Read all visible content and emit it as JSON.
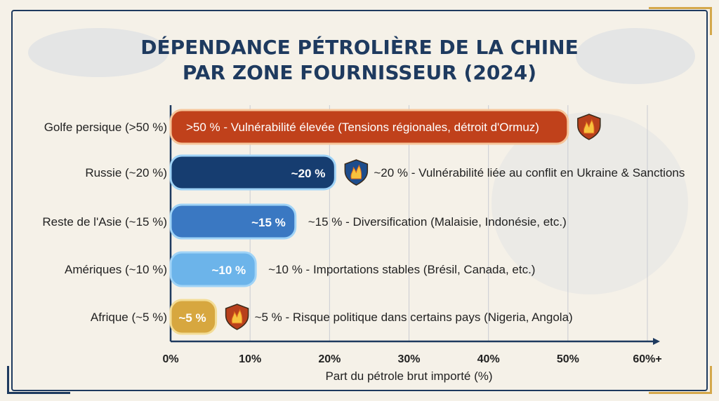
{
  "chart_data": {
    "type": "bar",
    "orientation": "horizontal",
    "title": "DÉPENDANCE PÉTROLIÈRE DE LA CHINE PAR ZONE FOURNISSEUR (2024)",
    "title_lines": [
      "DÉPENDANCE PÉTROLIÈRE DE LA CHINE",
      "PAR ZONE FOURNISSEUR (2024)"
    ],
    "xlabel": "Part du pétrole brut importé (%)",
    "ylabel": "",
    "xlim": [
      0,
      60
    ],
    "xticks": [
      "0%",
      "10%",
      "20%",
      "30%",
      "40%",
      "50%",
      "60%+"
    ],
    "grid": true,
    "categories": [
      "Golfe persique (>50 %)",
      "Russie (~20 %)",
      "Reste de l'Asie (~15 %)",
      "Amériques (~10 %)",
      "Afrique (~5 %)"
    ],
    "values": [
      50,
      20,
      15,
      10,
      5
    ],
    "bar_labels": [
      ">50 % - Vulnérabilité élevée (Tensions régionales, détroit d'Ormuz)",
      "~20 %",
      "~15 %",
      "~10 %",
      "~5 %"
    ],
    "annotations": [
      "",
      "~20 % - Vulnérabilité liée au conflit en Ukraine & Sanctions",
      "~15 % - Diversification (Malaisie, Indonésie, etc.)",
      "~10 % - Importations stables (Brésil, Canada, etc.)",
      "~5 % - Risque politique dans certains pays (Nigeria, Angola)"
    ],
    "shield_icons": [
      true,
      true,
      false,
      false,
      true
    ],
    "colors": [
      "#c0411b",
      "#163d70",
      "#3a78c2",
      "#6cb4ea",
      "#d7a73f"
    ],
    "shield_colors": [
      "#b8401c",
      "#1e4d8c",
      "",
      "",
      "#b8401c"
    ]
  }
}
